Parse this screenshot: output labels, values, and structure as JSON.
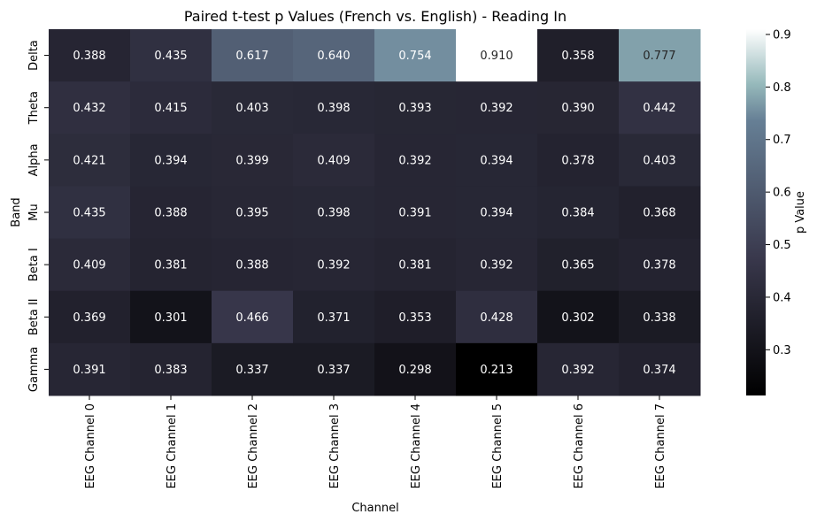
{
  "chart_data": {
    "type": "heatmap",
    "title": "Paired t-test p Values (French vs. English) - Reading In",
    "xlabel": "Channel",
    "ylabel": "Band",
    "x_categories": [
      "EEG Channel 0",
      "EEG Channel 1",
      "EEG Channel 2",
      "EEG Channel 3",
      "EEG Channel 4",
      "EEG Channel 5",
      "EEG Channel 6",
      "EEG Channel 7"
    ],
    "y_categories": [
      "Delta",
      "Theta",
      "Alpha",
      "Mu",
      "Beta I",
      "Beta II",
      "Gamma"
    ],
    "values": [
      [
        0.388,
        0.435,
        0.617,
        0.64,
        0.754,
        0.91,
        0.358,
        0.777
      ],
      [
        0.432,
        0.415,
        0.403,
        0.398,
        0.393,
        0.392,
        0.39,
        0.442
      ],
      [
        0.421,
        0.394,
        0.399,
        0.409,
        0.392,
        0.394,
        0.378,
        0.403
      ],
      [
        0.435,
        0.388,
        0.395,
        0.398,
        0.391,
        0.394,
        0.384,
        0.368
      ],
      [
        0.409,
        0.381,
        0.388,
        0.392,
        0.381,
        0.392,
        0.365,
        0.378
      ],
      [
        0.369,
        0.301,
        0.466,
        0.371,
        0.353,
        0.428,
        0.302,
        0.338
      ],
      [
        0.391,
        0.383,
        0.337,
        0.337,
        0.298,
        0.213,
        0.392,
        0.374
      ]
    ],
    "value_format": "0.000",
    "colorbar": {
      "label": "p Value",
      "range": [
        0.213,
        0.91
      ],
      "ticks": [
        0.3,
        0.4,
        0.5,
        0.6,
        0.7,
        0.8,
        0.9
      ],
      "tick_labels": [
        "0.3",
        "0.4",
        "0.5",
        "0.6",
        "0.7",
        "0.8",
        "0.9"
      ],
      "colormap": "bone",
      "stops": [
        "#000000",
        "#3a3a4d",
        "#5e6a85",
        "#8aa7b0",
        "#ffffff"
      ]
    },
    "grid": false,
    "legend": "right"
  }
}
